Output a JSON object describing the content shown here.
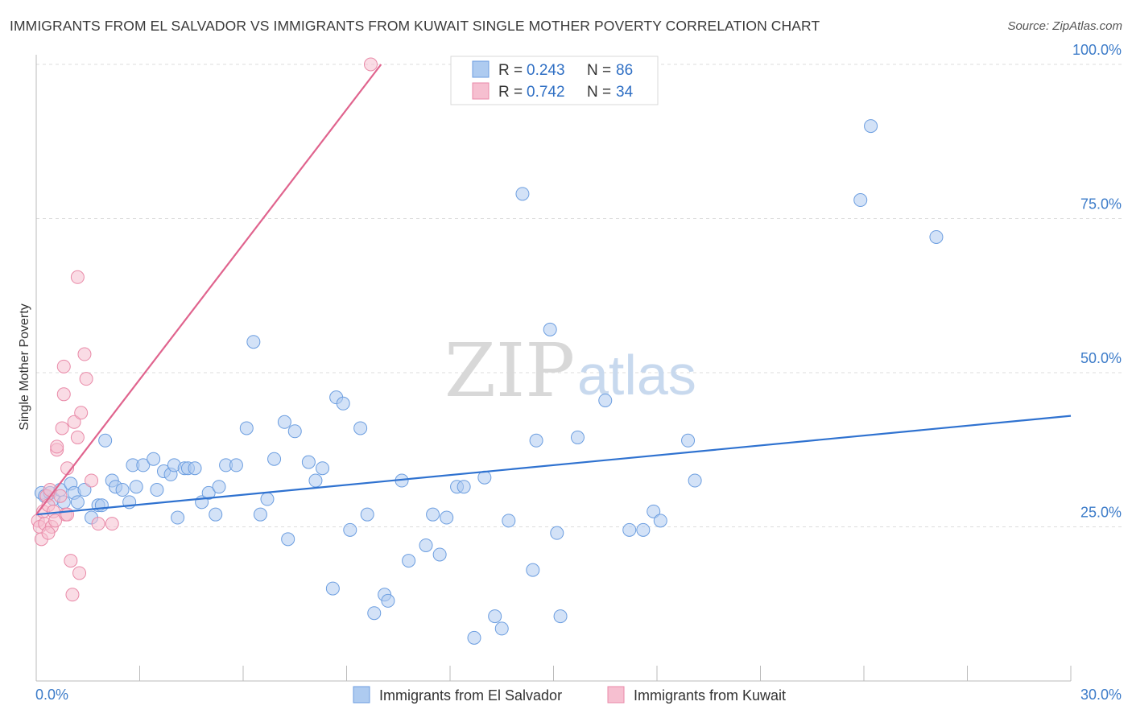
{
  "title": "IMMIGRANTS FROM EL SALVADOR VS IMMIGRANTS FROM KUWAIT SINGLE MOTHER POVERTY CORRELATION CHART",
  "source": "Source: ZipAtlas.com",
  "watermark": {
    "zip": "ZIP",
    "atlas": "atlas"
  },
  "colors": {
    "blue_fill": "#aecbf0",
    "blue_stroke": "#6c9ee0",
    "blue_line": "#2f72d0",
    "pink_fill": "#f6bfd0",
    "pink_stroke": "#e98aa8",
    "pink_line": "#e0648e",
    "grid": "#dddddd",
    "tick_text": "#3d7cc9"
  },
  "legend": {
    "rows": [
      {
        "r_label": "R = ",
        "r_value": "0.243",
        "n_label": "N = ",
        "n_value": "86"
      },
      {
        "r_label": "R = ",
        "r_value": "0.742",
        "n_label": "N = ",
        "n_value": "34"
      }
    ]
  },
  "chart_data": {
    "type": "scatter",
    "ylabel": "Single Mother Poverty",
    "xlim": [
      0,
      30
    ],
    "ylim": [
      0,
      105
    ],
    "x_tick_labels": [
      {
        "value": 0,
        "label": "0.0%"
      },
      {
        "value": 30,
        "label": "30.0%"
      }
    ],
    "y_tick_labels": [
      {
        "value": 25,
        "label": "25.0%"
      },
      {
        "value": 50,
        "label": "50.0%"
      },
      {
        "value": 75,
        "label": "75.0%"
      },
      {
        "value": 100,
        "label": "100.0%"
      }
    ],
    "grid": true,
    "series": [
      {
        "name": "Immigrants from El Salvador",
        "color": "blue",
        "trend": {
          "x": [
            0,
            30
          ],
          "y": [
            27.0,
            43.0
          ]
        },
        "points": [
          [
            0.15,
            30.5
          ],
          [
            0.25,
            30.0
          ],
          [
            0.4,
            30.5
          ],
          [
            0.5,
            29.5
          ],
          [
            0.7,
            31.0
          ],
          [
            0.8,
            29.0
          ],
          [
            1.0,
            32.0
          ],
          [
            1.1,
            30.5
          ],
          [
            1.2,
            29.0
          ],
          [
            1.4,
            31.0
          ],
          [
            1.6,
            26.5
          ],
          [
            1.8,
            28.5
          ],
          [
            1.9,
            28.5
          ],
          [
            2.0,
            39.0
          ],
          [
            2.2,
            32.5
          ],
          [
            2.3,
            31.5
          ],
          [
            2.5,
            31.0
          ],
          [
            2.7,
            29.0
          ],
          [
            2.8,
            35.0
          ],
          [
            2.9,
            31.5
          ],
          [
            3.1,
            35.0
          ],
          [
            3.4,
            36.0
          ],
          [
            3.5,
            31.0
          ],
          [
            3.7,
            34.0
          ],
          [
            3.9,
            33.5
          ],
          [
            4.0,
            35.0
          ],
          [
            4.1,
            26.5
          ],
          [
            4.3,
            34.5
          ],
          [
            4.4,
            34.5
          ],
          [
            4.6,
            34.5
          ],
          [
            4.8,
            29.0
          ],
          [
            5.0,
            30.5
          ],
          [
            5.2,
            27.0
          ],
          [
            5.3,
            31.5
          ],
          [
            5.5,
            35.0
          ],
          [
            5.8,
            35.0
          ],
          [
            6.1,
            41.0
          ],
          [
            6.3,
            55.0
          ],
          [
            6.5,
            27.0
          ],
          [
            6.7,
            29.5
          ],
          [
            6.9,
            36.0
          ],
          [
            7.2,
            42.0
          ],
          [
            7.3,
            23.0
          ],
          [
            7.5,
            40.5
          ],
          [
            7.9,
            35.5
          ],
          [
            8.1,
            32.5
          ],
          [
            8.3,
            34.5
          ],
          [
            8.6,
            15.0
          ],
          [
            8.7,
            46.0
          ],
          [
            8.9,
            45.0
          ],
          [
            9.1,
            24.5
          ],
          [
            9.4,
            41.0
          ],
          [
            9.6,
            27.0
          ],
          [
            9.8,
            11.0
          ],
          [
            10.1,
            14.0
          ],
          [
            10.2,
            13.0
          ],
          [
            10.6,
            32.5
          ],
          [
            10.8,
            19.5
          ],
          [
            11.3,
            22.0
          ],
          [
            11.5,
            27.0
          ],
          [
            11.7,
            20.5
          ],
          [
            11.9,
            26.5
          ],
          [
            12.2,
            31.5
          ],
          [
            12.4,
            31.5
          ],
          [
            12.7,
            7.0
          ],
          [
            13.0,
            33.0
          ],
          [
            13.3,
            10.5
          ],
          [
            13.5,
            8.5
          ],
          [
            13.7,
            26.0
          ],
          [
            14.1,
            79.0
          ],
          [
            14.4,
            18.0
          ],
          [
            14.5,
            39.0
          ],
          [
            14.9,
            57.0
          ],
          [
            15.1,
            24.0
          ],
          [
            15.2,
            10.5
          ],
          [
            15.7,
            39.5
          ],
          [
            16.5,
            45.5
          ],
          [
            17.2,
            24.5
          ],
          [
            17.6,
            24.5
          ],
          [
            17.9,
            27.5
          ],
          [
            18.1,
            26.0
          ],
          [
            18.9,
            39.0
          ],
          [
            19.1,
            32.5
          ],
          [
            23.9,
            78.0
          ],
          [
            24.2,
            90.0
          ],
          [
            26.1,
            72.0
          ]
        ]
      },
      {
        "name": "Immigrants from Kuwait",
        "color": "pink",
        "trend": {
          "x": [
            0,
            10.0
          ],
          "y": [
            27.0,
            100.0
          ]
        },
        "points": [
          [
            0.05,
            26.0
          ],
          [
            0.1,
            25.0
          ],
          [
            0.15,
            23.0
          ],
          [
            0.2,
            27.5
          ],
          [
            0.25,
            25.5
          ],
          [
            0.3,
            30.0
          ],
          [
            0.35,
            28.5
          ],
          [
            0.4,
            31.0
          ],
          [
            0.45,
            25.0
          ],
          [
            0.5,
            27.5
          ],
          [
            0.55,
            26.0
          ],
          [
            0.6,
            37.5
          ],
          [
            0.6,
            38.0
          ],
          [
            0.7,
            30.0
          ],
          [
            0.75,
            41.0
          ],
          [
            0.8,
            51.0
          ],
          [
            0.8,
            46.5
          ],
          [
            0.85,
            27.0
          ],
          [
            0.9,
            34.5
          ],
          [
            1.0,
            19.5
          ],
          [
            1.05,
            14.0
          ],
          [
            1.1,
            42.0
          ],
          [
            1.2,
            65.5
          ],
          [
            1.2,
            39.5
          ],
          [
            1.25,
            17.5
          ],
          [
            1.3,
            43.5
          ],
          [
            1.4,
            53.0
          ],
          [
            1.45,
            49.0
          ],
          [
            1.6,
            32.5
          ],
          [
            1.8,
            25.5
          ],
          [
            2.2,
            25.5
          ],
          [
            9.7,
            100.0
          ],
          [
            0.35,
            24.0
          ],
          [
            0.9,
            27.0
          ]
        ]
      }
    ]
  }
}
